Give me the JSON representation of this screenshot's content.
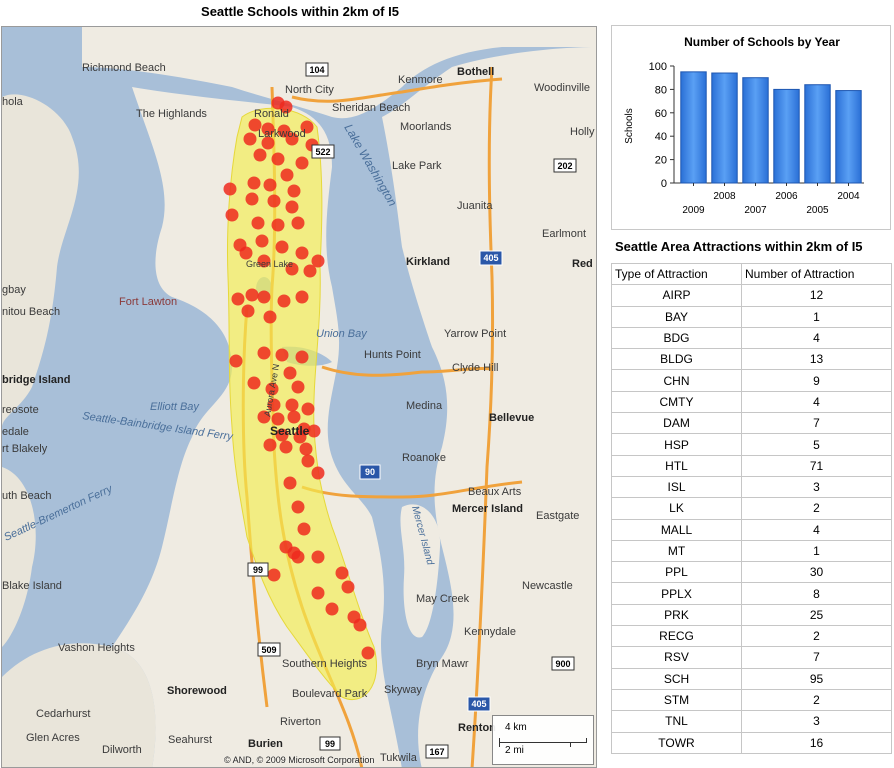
{
  "map": {
    "title": "Seattle Schools within 2km of I5",
    "copyright": "© AND, © 2009 Microsoft Corporation",
    "scale": {
      "km": "4 km",
      "mi": "2 mi"
    },
    "colors": {
      "water": "#a8bfd8",
      "land": "#efebe2",
      "buffer": "#f2ee50",
      "school": "#ee2a1e",
      "highway": "#f0a23c"
    },
    "labels": [
      {
        "id": "richmond-beach",
        "text": "Richmond Beach"
      },
      {
        "id": "north-city",
        "text": "North City"
      },
      {
        "id": "kenmore",
        "text": "Kenmore"
      },
      {
        "id": "bothell",
        "text": "Bothell"
      },
      {
        "id": "woodinville",
        "text": "Woodinville"
      },
      {
        "id": "hola",
        "text": "hola"
      },
      {
        "id": "the-highlands",
        "text": "The Highlands"
      },
      {
        "id": "ronald",
        "text": "Ronald"
      },
      {
        "id": "sheridan-beach",
        "text": "Sheridan Beach"
      },
      {
        "id": "moorlands",
        "text": "Moorlands"
      },
      {
        "id": "holly",
        "text": "Holly"
      },
      {
        "id": "lakewood",
        "text": "Larkwood"
      },
      {
        "id": "lake-park",
        "text": "Lake Park"
      },
      {
        "id": "lake-washington",
        "text": "Lake Washington"
      },
      {
        "id": "juanita",
        "text": "Juanita"
      },
      {
        "id": "earlmont",
        "text": "Earlmont"
      },
      {
        "id": "kirkland",
        "text": "Kirkland"
      },
      {
        "id": "red",
        "text": "Red"
      },
      {
        "id": "gbay",
        "text": "gbay"
      },
      {
        "id": "fort-lawton",
        "text": "Fort Lawton"
      },
      {
        "id": "unitou-beach",
        "text": "nitou Beach"
      },
      {
        "id": "union-bay",
        "text": "Union Bay"
      },
      {
        "id": "yarrow-point",
        "text": "Yarrow Point"
      },
      {
        "id": "hunts-point",
        "text": "Hunts Point"
      },
      {
        "id": "clyde-hill",
        "text": "Clyde Hill"
      },
      {
        "id": "bridge-island",
        "text": "bridge Island"
      },
      {
        "id": "elliott-bay",
        "text": "Elliott Bay"
      },
      {
        "id": "medina",
        "text": "Medina"
      },
      {
        "id": "bellevue",
        "text": "Bellevue"
      },
      {
        "id": "reosote",
        "text": "reosote"
      },
      {
        "id": "ferry",
        "text": "Seattle-Bainbridge Island Ferry"
      },
      {
        "id": "edale",
        "text": "edale"
      },
      {
        "id": "blakely",
        "text": "rt Blakely"
      },
      {
        "id": "seattle",
        "text": "Seattle"
      },
      {
        "id": "roanoke",
        "text": "Roanoke"
      },
      {
        "id": "beaux-arts",
        "text": "Beaux Arts"
      },
      {
        "id": "bremerton-ferry",
        "text": "Seattle-Bremerton Ferry"
      },
      {
        "id": "uth-beach",
        "text": "uth Beach"
      },
      {
        "id": "mercer-island",
        "text": "Mercer Island"
      },
      {
        "id": "eastgate",
        "text": "Eastgate"
      },
      {
        "id": "mercer-island-label",
        "text": "Mercer Island"
      },
      {
        "id": "newcastle",
        "text": "Newcastle"
      },
      {
        "id": "blake-island",
        "text": "Blake Island"
      },
      {
        "id": "may-creek",
        "text": "May Creek"
      },
      {
        "id": "kennydale",
        "text": "Kennydale"
      },
      {
        "id": "vashon-heights",
        "text": "Vashon Heights"
      },
      {
        "id": "southern-heights",
        "text": "Southern Heights"
      },
      {
        "id": "bryn-mawr",
        "text": "Bryn Mawr"
      },
      {
        "id": "shorewood",
        "text": "Shorewood"
      },
      {
        "id": "boulevard-park",
        "text": "Boulevard Park"
      },
      {
        "id": "skyway",
        "text": "Skyway"
      },
      {
        "id": "cedarhurst",
        "text": "Cedarhurst"
      },
      {
        "id": "seahurst",
        "text": "Seahurst"
      },
      {
        "id": "riverton",
        "text": "Riverton"
      },
      {
        "id": "renton",
        "text": "Renton"
      },
      {
        "id": "glen-acres",
        "text": "Glen Acres"
      },
      {
        "id": "dilworth",
        "text": "Dilworth"
      },
      {
        "id": "burien",
        "text": "Burien"
      },
      {
        "id": "tukwila",
        "text": "Tukwila"
      },
      {
        "id": "green-lake",
        "text": "Green Lake"
      },
      {
        "id": "lake-ave-n",
        "text": "Aurora Ave N"
      }
    ],
    "shields": [
      "104",
      "522",
      "202",
      "405",
      "90",
      "99",
      "509",
      "99",
      "900",
      "167",
      "405"
    ]
  },
  "chart": {
    "chart_data": {
      "type": "bar",
      "title": "Number of Schools by Year",
      "ylabel": "Schools",
      "categories": [
        "2009",
        "2008",
        "2007",
        "2006",
        "2005",
        "2004"
      ],
      "values": [
        95,
        94,
        90,
        80,
        84,
        79
      ],
      "ylim": [
        0,
        100
      ],
      "yticks": [
        0,
        20,
        40,
        60,
        80,
        100
      ],
      "grid": false,
      "color": "#3a86e8"
    }
  },
  "attractions": {
    "title": "Seattle Area Attractions within 2km of I5",
    "headers": [
      "Type of Attraction",
      "Number of Attraction"
    ],
    "rows": [
      [
        "AIRP",
        "12"
      ],
      [
        "BAY",
        "1"
      ],
      [
        "BDG",
        "4"
      ],
      [
        "BLDG",
        "13"
      ],
      [
        "CHN",
        "9"
      ],
      [
        "CMTY",
        "4"
      ],
      [
        "DAM",
        "7"
      ],
      [
        "HSP",
        "5"
      ],
      [
        "HTL",
        "71"
      ],
      [
        "ISL",
        "3"
      ],
      [
        "LK",
        "2"
      ],
      [
        "MALL",
        "4"
      ],
      [
        "MT",
        "1"
      ],
      [
        "PPL",
        "30"
      ],
      [
        "PPLX",
        "8"
      ],
      [
        "PRK",
        "25"
      ],
      [
        "RECG",
        "2"
      ],
      [
        "RSV",
        "7"
      ],
      [
        "SCH",
        "95"
      ],
      [
        "STM",
        "2"
      ],
      [
        "TNL",
        "3"
      ],
      [
        "TOWR",
        "16"
      ]
    ]
  }
}
